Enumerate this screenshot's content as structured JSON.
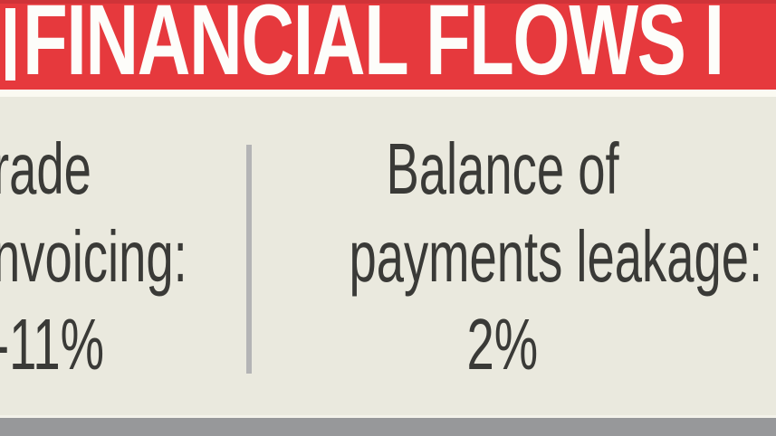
{
  "banner": {
    "title": "FINANCIAL FLOWS I",
    "bg_color": "#e6393d",
    "text_color": "#fdfdfa"
  },
  "body": {
    "bg_color": "#eae9de",
    "text_color": "#3a3a37",
    "divider_color": "#b4b4b5",
    "left_column": {
      "lines": [
        "rade",
        "nvoicing:",
        "-11%"
      ]
    },
    "right_column": {
      "lines": [
        "Balance of",
        "payments leakage:",
        "2%"
      ]
    }
  },
  "footer": {
    "bar_color": "#97989a"
  },
  "chart_data": {
    "type": "table",
    "title": "FINANCIAL FLOWS I",
    "categories": [
      "rade nvoicing:",
      "Balance of payments leakage:"
    ],
    "values": [
      "-11%",
      "2%"
    ]
  }
}
